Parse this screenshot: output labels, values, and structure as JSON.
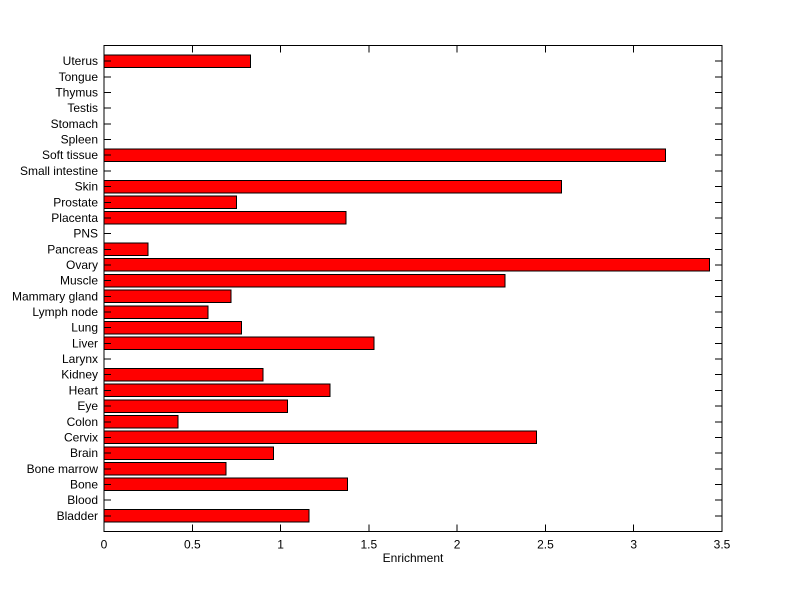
{
  "figure": {
    "background": "#FFFFFF"
  },
  "chart_data": {
    "type": "bar",
    "orientation": "horizontal",
    "title": "",
    "xlabel": "Enrichment",
    "ylabel": "",
    "xlim": [
      0,
      3.5
    ],
    "ylim": [
      0,
      31
    ],
    "xticks": [
      0,
      0.5,
      1,
      1.5,
      2,
      2.5,
      3,
      3.5
    ],
    "xtick_labels": [
      "0",
      "0.5",
      "1",
      "1.5",
      "2",
      "2.5",
      "3",
      "3.5"
    ],
    "grid": false,
    "legend": "none",
    "bar_color": "#FF0000",
    "bar_edge_color": "#000000",
    "axis_color": "#000000",
    "categories": [
      "Uterus",
      "Tongue",
      "Thymus",
      "Testis",
      "Stomach",
      "Spleen",
      "Soft tissue",
      "Small intestine",
      "Skin",
      "Prostate",
      "Placenta",
      "PNS",
      "Pancreas",
      "Ovary",
      "Muscle",
      "Mammary gland",
      "Lymph node",
      "Lung",
      "Liver",
      "Larynx",
      "Kidney",
      "Heart",
      "Eye",
      "Colon",
      "Cervix",
      "Brain",
      "Bone marrow",
      "Bone",
      "Blood",
      "Bladder"
    ],
    "values": [
      0.83,
      0,
      0,
      0,
      0,
      0,
      3.18,
      0,
      2.59,
      0.75,
      1.37,
      0,
      0.25,
      3.43,
      2.27,
      0.72,
      0.59,
      0.78,
      1.53,
      0,
      0.9,
      1.28,
      1.04,
      0.42,
      2.45,
      0.96,
      0.69,
      1.38,
      0,
      1.16
    ]
  }
}
